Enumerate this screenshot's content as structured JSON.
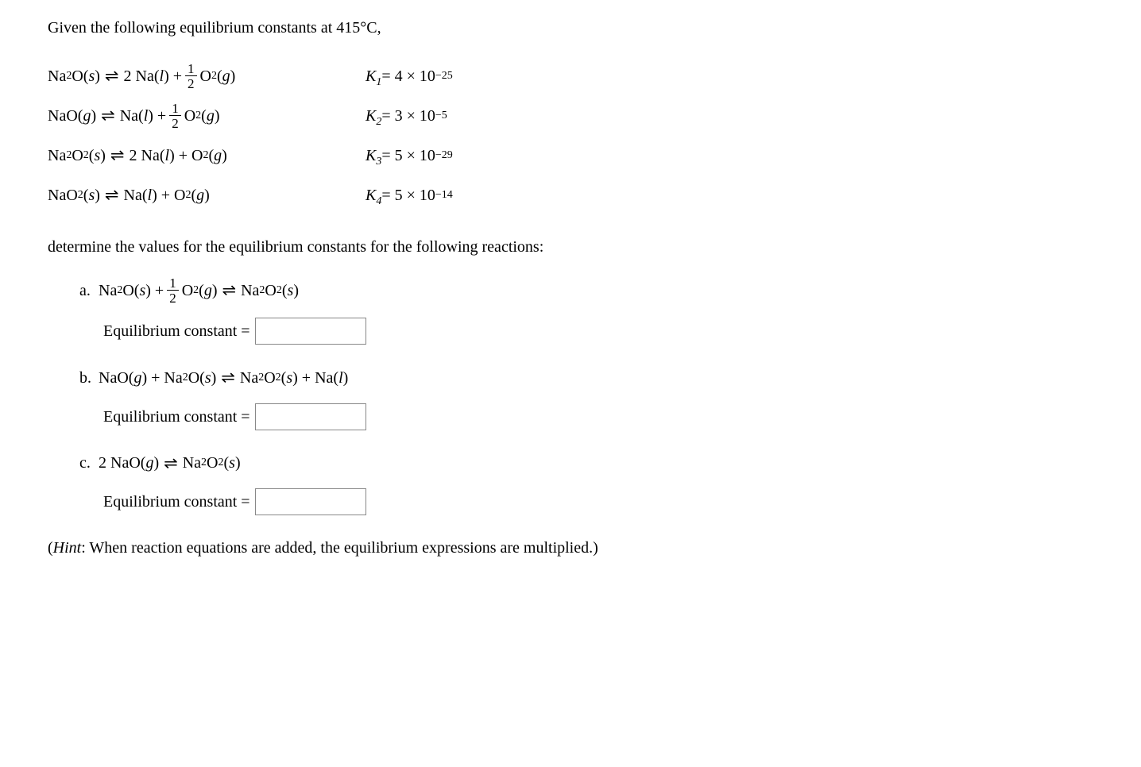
{
  "intro": "Given the following equilibrium constants at 415°C,",
  "reactions": [
    {
      "lhs_left": "Na<sub>2</sub>O(<span class='ital'>s</span>)",
      "lhs_right": "2 Na(<span class='ital'>l</span>) + FRAC12 O<sub>2</sub>(<span class='ital'>g</span>)",
      "kname": "K<sub>1</sub>",
      "kval": "4 × 10<sup>−25</sup>"
    },
    {
      "lhs_left": "NaO(<span class='ital'>g</span>)",
      "lhs_right": "Na(<span class='ital'>l</span>) + FRAC12 O<sub>2</sub>(<span class='ital'>g</span>)",
      "kname": "K<sub>2</sub>",
      "kval": "3 × 10<sup>−5</sup>"
    },
    {
      "lhs_left": "Na<sub>2</sub>O<sub>2</sub>(<span class='ital'>s</span>)",
      "lhs_right": "2 Na(<span class='ital'>l</span>) + O<sub>2</sub>(<span class='ital'>g</span>)",
      "kname": "K<sub>3</sub>",
      "kval": "5 × 10<sup>−29</sup>"
    },
    {
      "lhs_left": "NaO<sub>2</sub>(<span class='ital'>s</span>)",
      "lhs_right": "Na(<span class='ital'>l</span>) + O<sub>2</sub>(<span class='ital'>g</span>)",
      "kname": "K<sub>4</sub>",
      "kval": "5 × 10<sup>−14</sup>"
    }
  ],
  "subtext": "determine the values for the equilibrium constants for the following reactions:",
  "parts": [
    {
      "label": "a.",
      "rxn": "Na<sub>2</sub>O(<span class='ital'>s</span>) + FRAC12 O<sub>2</sub>(<span class='ital'>g</span>) ⇌ Na<sub>2</sub>O<sub>2</sub>(<span class='ital'>s</span>)"
    },
    {
      "label": "b.",
      "rxn": "NaO(<span class='ital'>g</span>) + Na<sub>2</sub>O(<span class='ital'>s</span>) ⇌ Na<sub>2</sub>O<sub>2</sub>(<span class='ital'>s</span>) + Na(<span class='ital'>l</span>)"
    },
    {
      "label": "c.",
      "rxn": "2 NaO(<span class='ital'>g</span>) ⇌ Na<sub>2</sub>O<sub>2</sub>(<span class='ital'>s</span>)"
    }
  ],
  "answer_label": "Equilibrium constant =",
  "hint_prefix": "Hint",
  "hint_text": ": When reaction equations are added, the equilibrium expressions are multiplied.)",
  "eq_arrow": "⇌",
  "frac_num": "1",
  "frac_den": "2"
}
